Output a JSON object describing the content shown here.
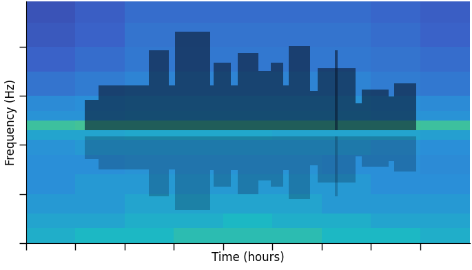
{
  "chart_data": {
    "type": "heatmap",
    "xlabel": "Time (hours)",
    "ylabel": "Frequency (Hz)",
    "xlim": [
      0,
      9
    ],
    "ylim": [
      0,
      4.93
    ],
    "xticks": [
      0,
      1,
      2,
      3,
      4,
      5,
      6,
      7,
      8
    ],
    "yticks": [
      0,
      1,
      2,
      3,
      4
    ],
    "tick_labels": false,
    "x_edges": [
      0,
      1,
      2,
      3,
      4,
      5,
      6,
      7,
      8,
      9
    ],
    "y_edges": [
      0,
      0.3,
      0.6,
      1.0,
      1.4,
      1.8,
      2.1,
      2.3,
      2.5,
      2.7,
      3.0,
      3.5,
      4.0,
      4.5,
      4.93
    ],
    "cell_range": [
      0,
      1
    ],
    "cells": [
      [
        0.55,
        0.6,
        0.6,
        0.65,
        0.65,
        0.65,
        0.6,
        0.6,
        0.55
      ],
      [
        0.5,
        0.5,
        0.55,
        0.55,
        0.6,
        0.55,
        0.55,
        0.5,
        0.5
      ],
      [
        0.45,
        0.45,
        0.5,
        0.5,
        0.5,
        0.5,
        0.45,
        0.45,
        0.45
      ],
      [
        0.4,
        0.45,
        0.45,
        0.45,
        0.45,
        0.45,
        0.45,
        0.4,
        0.4
      ],
      [
        0.4,
        0.4,
        0.42,
        0.42,
        0.42,
        0.42,
        0.4,
        0.4,
        0.38
      ],
      [
        0.42,
        0.45,
        0.45,
        0.45,
        0.45,
        0.45,
        0.45,
        0.42,
        0.4
      ],
      [
        0.5,
        0.5,
        0.52,
        0.52,
        0.52,
        0.5,
        0.5,
        0.5,
        0.48
      ],
      [
        0.7,
        0.72,
        0.72,
        0.72,
        0.72,
        0.72,
        0.72,
        0.72,
        0.7
      ],
      [
        0.42,
        0.42,
        0.45,
        0.45,
        0.45,
        0.45,
        0.45,
        0.42,
        0.42
      ],
      [
        0.38,
        0.4,
        0.42,
        0.42,
        0.42,
        0.42,
        0.42,
        0.4,
        0.38
      ],
      [
        0.28,
        0.32,
        0.35,
        0.35,
        0.35,
        0.35,
        0.35,
        0.32,
        0.3
      ],
      [
        0.2,
        0.25,
        0.3,
        0.3,
        0.3,
        0.3,
        0.3,
        0.28,
        0.25
      ],
      [
        0.15,
        0.2,
        0.28,
        0.28,
        0.28,
        0.28,
        0.28,
        0.25,
        0.2
      ],
      [
        0.12,
        0.18,
        0.25,
        0.25,
        0.25,
        0.25,
        0.25,
        0.22,
        0.18
      ]
    ],
    "skyline_base": 2.3,
    "skyline": [
      {
        "start": 1.19,
        "end": 1.47,
        "height": 2.92
      },
      {
        "start": 1.47,
        "end": 2.49,
        "height": 3.21
      },
      {
        "start": 2.49,
        "end": 2.9,
        "height": 3.93
      },
      {
        "start": 2.9,
        "end": 3.03,
        "height": 3.21
      },
      {
        "start": 3.03,
        "end": 3.74,
        "height": 4.31
      },
      {
        "start": 3.74,
        "end": 3.81,
        "height": 3.22
      },
      {
        "start": 3.81,
        "end": 4.15,
        "height": 3.68
      },
      {
        "start": 4.15,
        "end": 4.29,
        "height": 3.22
      },
      {
        "start": 4.29,
        "end": 4.72,
        "height": 3.88
      },
      {
        "start": 4.72,
        "end": 4.96,
        "height": 3.51
      },
      {
        "start": 4.96,
        "end": 5.22,
        "height": 3.68
      },
      {
        "start": 5.22,
        "end": 5.33,
        "height": 3.22
      },
      {
        "start": 5.33,
        "end": 5.76,
        "height": 4.01
      },
      {
        "start": 5.76,
        "end": 5.92,
        "height": 3.1
      },
      {
        "start": 5.92,
        "end": 6.68,
        "height": 3.57
      },
      {
        "start": 6.26,
        "end": 6.32,
        "height": 3.93
      },
      {
        "start": 6.68,
        "end": 6.81,
        "height": 2.85
      },
      {
        "start": 6.81,
        "end": 7.35,
        "height": 3.13
      },
      {
        "start": 7.35,
        "end": 7.47,
        "height": 2.99
      },
      {
        "start": 7.47,
        "end": 7.92,
        "height": 3.26
      }
    ]
  }
}
